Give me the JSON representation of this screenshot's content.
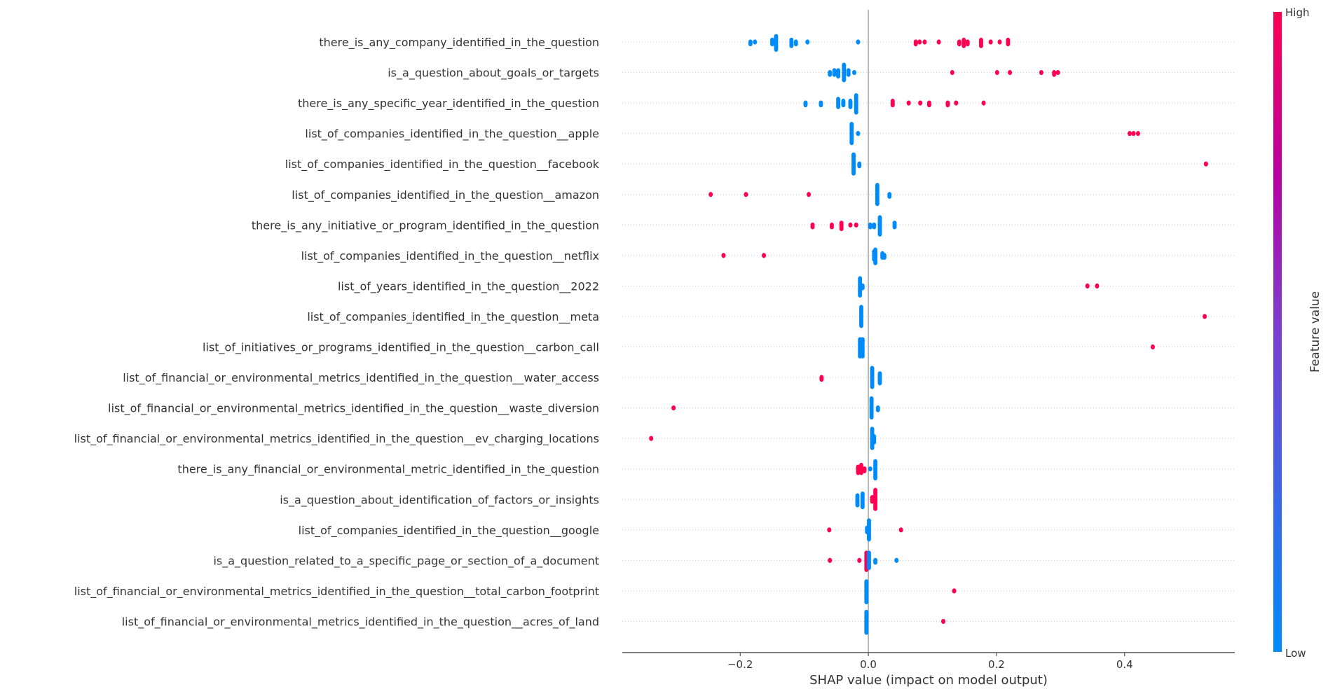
{
  "chart_data": {
    "type": "scatter",
    "subtype": "beeswarm",
    "xlabel": "SHAP value (impact on model output)",
    "xlim": [
      -0.384,
      0.572
    ],
    "xticks": [
      -0.2,
      0.0,
      0.2,
      0.4
    ],
    "xtick_labels": [
      "−0.2",
      "0.0",
      "0.2",
      "0.4"
    ],
    "grid": "dotted horizontal row lines",
    "colorbar": {
      "label": "Feature value",
      "high_label": "High",
      "low_label": "Low",
      "high_color": "#ff0052",
      "mid_color": "#b9009f",
      "low_color": "#008bfb",
      "placement": "right"
    },
    "point_format": "[shap_value, feature_value_high(1)_or_low(0), approximate_count]",
    "features": [
      {
        "name": "there_is_any_company_identified_in_the_question",
        "points": [
          [
            -0.184,
            0,
            2
          ],
          [
            -0.177,
            0,
            1
          ],
          [
            -0.15,
            0,
            3
          ],
          [
            -0.144,
            0,
            8
          ],
          [
            -0.12,
            0,
            4
          ],
          [
            -0.113,
            0,
            2
          ],
          [
            -0.095,
            0,
            1
          ],
          [
            -0.016,
            0,
            1
          ],
          [
            0.074,
            1,
            2
          ],
          [
            0.08,
            1,
            1
          ],
          [
            0.088,
            1,
            1
          ],
          [
            0.11,
            1,
            1
          ],
          [
            0.142,
            1,
            2
          ],
          [
            0.149,
            1,
            4
          ],
          [
            0.155,
            1,
            2
          ],
          [
            0.176,
            1,
            4
          ],
          [
            0.191,
            1,
            1
          ],
          [
            0.205,
            1,
            1
          ],
          [
            0.218,
            1,
            3
          ]
        ]
      },
      {
        "name": "is_a_question_about_goals_or_targets",
        "points": [
          [
            -0.06,
            0,
            2
          ],
          [
            -0.053,
            0,
            3
          ],
          [
            -0.047,
            0,
            4
          ],
          [
            -0.038,
            0,
            9
          ],
          [
            -0.031,
            0,
            3
          ],
          [
            -0.022,
            0,
            1
          ],
          [
            0.131,
            1,
            1
          ],
          [
            0.201,
            1,
            1
          ],
          [
            0.221,
            1,
            1
          ],
          [
            0.27,
            1,
            1
          ],
          [
            0.29,
            1,
            2
          ],
          [
            0.296,
            1,
            1
          ]
        ]
      },
      {
        "name": "there_is_any_specific_year_identified_in_the_question",
        "points": [
          [
            -0.098,
            0,
            2
          ],
          [
            -0.074,
            0,
            2
          ],
          [
            -0.047,
            0,
            5
          ],
          [
            -0.039,
            0,
            3
          ],
          [
            -0.028,
            0,
            4
          ],
          [
            -0.019,
            0,
            10
          ],
          [
            0.038,
            1,
            3
          ],
          [
            0.063,
            1,
            1
          ],
          [
            0.081,
            1,
            1
          ],
          [
            0.095,
            1,
            2
          ],
          [
            0.124,
            1,
            2
          ],
          [
            0.137,
            1,
            1
          ],
          [
            0.18,
            1,
            1
          ]
        ]
      },
      {
        "name": "list_of_companies_identified_in_the_question__apple",
        "points": [
          [
            -0.026,
            0,
            11
          ],
          [
            -0.016,
            0,
            1
          ],
          [
            0.408,
            1,
            1
          ],
          [
            0.414,
            1,
            1
          ],
          [
            0.421,
            1,
            1
          ]
        ]
      },
      {
        "name": "list_of_companies_identified_in_the_question__facebook",
        "points": [
          [
            -0.023,
            0,
            11
          ],
          [
            -0.014,
            0,
            2
          ],
          [
            0.527,
            1,
            1
          ]
        ]
      },
      {
        "name": "list_of_companies_identified_in_the_question__amazon",
        "points": [
          [
            -0.246,
            1,
            1
          ],
          [
            -0.191,
            1,
            1
          ],
          [
            -0.093,
            1,
            1
          ],
          [
            0.014,
            0,
            11
          ],
          [
            0.033,
            0,
            2
          ]
        ]
      },
      {
        "name": "there_is_any_initiative_or_program_identified_in_the_question",
        "points": [
          [
            -0.087,
            1,
            2
          ],
          [
            -0.057,
            1,
            2
          ],
          [
            -0.042,
            1,
            4
          ],
          [
            -0.028,
            1,
            1
          ],
          [
            -0.019,
            1,
            1
          ],
          [
            0.003,
            0,
            2
          ],
          [
            0.009,
            0,
            2
          ],
          [
            0.018,
            0,
            10
          ],
          [
            0.041,
            0,
            3
          ]
        ]
      },
      {
        "name": "list_of_companies_identified_in_the_question__netflix",
        "points": [
          [
            -0.226,
            1,
            1
          ],
          [
            -0.163,
            1,
            1
          ],
          [
            0.009,
            0,
            5
          ],
          [
            0.011,
            0,
            8
          ],
          [
            0.022,
            0,
            3
          ],
          [
            0.025,
            0,
            2
          ]
        ]
      },
      {
        "name": "list_of_years_identified_in_the_question__2022",
        "points": [
          [
            -0.013,
            0,
            10
          ],
          [
            -0.009,
            0,
            2
          ],
          [
            0.342,
            1,
            1
          ],
          [
            0.357,
            1,
            1
          ]
        ]
      },
      {
        "name": "list_of_companies_identified_in_the_question__meta",
        "points": [
          [
            -0.011,
            0,
            11
          ],
          [
            0.525,
            1,
            1
          ]
        ]
      },
      {
        "name": "list_of_initiatives_or_programs_identified_in_the_question__carbon_call",
        "points": [
          [
            -0.013,
            0,
            10
          ],
          [
            -0.009,
            0,
            10
          ],
          [
            0.444,
            1,
            1
          ]
        ]
      },
      {
        "name": "list_of_financial_or_environmental_metrics_identified_in_the_question__water_access",
        "points": [
          [
            -0.073,
            1,
            2
          ],
          [
            0.006,
            0,
            11
          ],
          [
            0.018,
            0,
            6
          ]
        ]
      },
      {
        "name": "list_of_financial_or_environmental_metrics_identified_in_the_question__waste_diversion",
        "points": [
          [
            -0.304,
            1,
            1
          ],
          [
            0.005,
            0,
            11
          ],
          [
            0.015,
            0,
            2
          ]
        ]
      },
      {
        "name": "list_of_financial_or_environmental_metrics_identified_in_the_question__ev_charging_locations",
        "points": [
          [
            -0.339,
            1,
            1
          ],
          [
            0.006,
            0,
            11
          ],
          [
            0.009,
            0,
            4
          ]
        ]
      },
      {
        "name": "there_is_any_financial_or_environmental_metric_identified_in_the_question",
        "points": [
          [
            -0.016,
            1,
            4
          ],
          [
            -0.011,
            1,
            5
          ],
          [
            -0.006,
            1,
            2
          ],
          [
            0.003,
            0,
            1
          ],
          [
            0.011,
            0,
            10
          ]
        ]
      },
      {
        "name": "is_a_question_about_identification_of_factors_or_insights",
        "points": [
          [
            -0.017,
            0,
            6
          ],
          [
            -0.009,
            0,
            8
          ],
          [
            0.006,
            1,
            3
          ],
          [
            0.011,
            1,
            11
          ]
        ]
      },
      {
        "name": "list_of_companies_identified_in_the_question__google",
        "points": [
          [
            -0.061,
            1,
            1
          ],
          [
            -0.002,
            0,
            3
          ],
          [
            0.001,
            0,
            11
          ],
          [
            0.051,
            1,
            1
          ]
        ]
      },
      {
        "name": "is_a_question_related_to_a_specific_page_or_section_of_a_document",
        "points": [
          [
            -0.06,
            1,
            1
          ],
          [
            -0.014,
            1,
            1
          ],
          [
            -0.003,
            1,
            10
          ],
          [
            0.001,
            0,
            9
          ],
          [
            0.011,
            0,
            2
          ],
          [
            0.044,
            0,
            1
          ]
        ]
      },
      {
        "name": "list_of_financial_or_environmental_metrics_identified_in_the_question__total_carbon_footprint",
        "points": [
          [
            -0.003,
            0,
            12
          ],
          [
            0.134,
            1,
            1
          ]
        ]
      },
      {
        "name": "list_of_financial_or_environmental_metrics_identified_in_the_question__acres_of_land",
        "points": [
          [
            -0.003,
            0,
            12
          ],
          [
            0.117,
            1,
            1
          ]
        ]
      }
    ]
  }
}
